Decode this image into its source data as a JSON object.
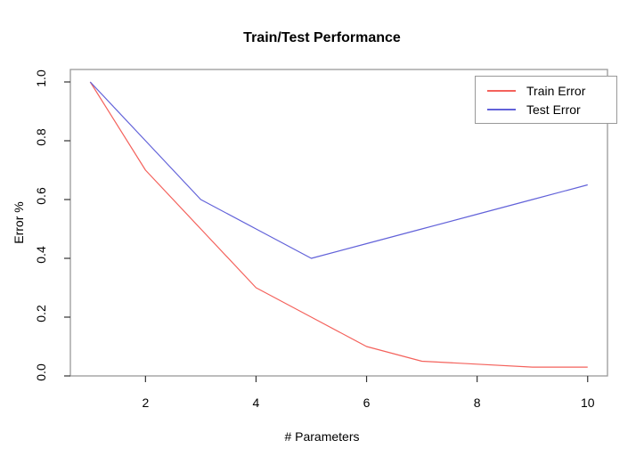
{
  "chart_data": {
    "type": "line",
    "title": "Train/Test Performance",
    "xlabel": "# Parameters",
    "ylabel": "Error %",
    "x": [
      1,
      2,
      3,
      4,
      5,
      6,
      7,
      8,
      9,
      10
    ],
    "series": [
      {
        "name": "Train Error",
        "color": "#f4625c",
        "values": [
          1.0,
          0.7,
          0.5,
          0.3,
          0.2,
          0.1,
          0.05,
          0.04,
          0.03,
          0.03
        ]
      },
      {
        "name": "Test Error",
        "color": "#6262d9",
        "values": [
          1.0,
          0.8,
          0.6,
          0.5,
          0.4,
          0.45,
          0.5,
          0.55,
          0.6,
          0.65
        ]
      }
    ],
    "xticks": {
      "values": [
        2,
        4,
        6,
        8,
        10
      ],
      "labels": [
        "2",
        "4",
        "6",
        "8",
        "10"
      ]
    },
    "yticks": {
      "values": [
        0,
        0.2,
        0.4,
        0.6,
        0.8,
        1.0
      ],
      "labels": [
        "0.0",
        "0.2",
        "0.4",
        "0.6",
        "0.8",
        "1.0"
      ]
    },
    "xlim": [
      1,
      10
    ],
    "ylim": [
      0,
      1
    ],
    "grid": false,
    "legend": {
      "position": "top-right",
      "entries": [
        "Train Error",
        "Test Error"
      ]
    },
    "axis_color": "#999999",
    "tick_color": "#333333"
  }
}
